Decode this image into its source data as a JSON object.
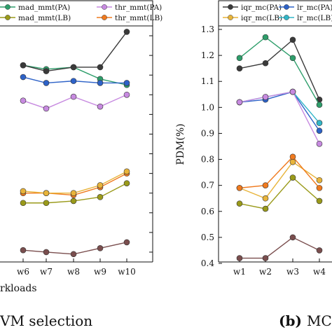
{
  "chart_data": [
    {
      "type": "line",
      "categories": [
        "w6",
        "w7",
        "w8",
        "w9",
        "w10"
      ],
      "xlabel": "rkloads",
      "caption": "VM selection",
      "series": [
        {
          "name": "mad_mmt(PA)",
          "color": "#2e9e6b",
          "marker": "circle",
          "values": [
            1.2,
            1.18,
            1.19,
            1.13,
            1.1
          ]
        },
        {
          "name": "thr_mmt(PA)",
          "color": "#c78ae0",
          "marker": "circle",
          "values": [
            1.02,
            0.98,
            1.04,
            0.99,
            1.05
          ]
        },
        {
          "name": "mad_mmt(LB)",
          "color": "#9a9a1a",
          "marker": "circle",
          "values": [
            0.5,
            0.5,
            0.51,
            0.53,
            0.6
          ]
        },
        {
          "name": "thr_mmt(LB)",
          "color": "#f07a1e",
          "marker": "circle",
          "values": [
            0.55,
            0.55,
            0.54,
            0.58,
            0.65
          ]
        },
        {
          "name": "",
          "color": "#3a3a3a",
          "marker": "circle",
          "values": [
            1.2,
            1.17,
            1.19,
            1.19,
            1.37
          ]
        },
        {
          "name": "",
          "color": "#2d62c8",
          "marker": "circle",
          "values": [
            1.14,
            1.11,
            1.12,
            1.11,
            1.11
          ]
        },
        {
          "name": "",
          "color": "#e8b43a",
          "marker": "circle",
          "values": [
            0.56,
            0.55,
            0.55,
            0.59,
            0.66
          ]
        },
        {
          "name": "",
          "color": "#7a4e4e",
          "marker": "circle",
          "values": [
            0.26,
            0.25,
            0.24,
            0.27,
            0.3
          ]
        }
      ],
      "legend_labels": [
        "mad_mmt(PA)",
        "thr_mmt(PA)",
        "mad_mmt(LB)",
        "thr_mmt(LB)"
      ]
    },
    {
      "type": "line",
      "categories": [
        "w1",
        "w2",
        "w3",
        "w4"
      ],
      "ylabel": "PDM(%)",
      "caption_prefix": "(b)",
      "caption": "MC",
      "ylim": [
        0.4,
        1.3
      ],
      "yticks": [
        "0.4",
        "0.5",
        "0.6",
        "0.7",
        "0.8",
        "0.9",
        "1.0",
        "1.1",
        "1.2",
        "1.3"
      ],
      "series": [
        {
          "name": "iqr_mc(PA)",
          "color": "#3a3a3a",
          "marker": "circle",
          "values": [
            1.15,
            1.17,
            1.26,
            1.03
          ]
        },
        {
          "name": "lr_mc(PA)",
          "color": "#2d62c8",
          "marker": "circle",
          "values": [
            1.02,
            1.03,
            1.06,
            0.91
          ]
        },
        {
          "name": "iqr_mc(LB)",
          "color": "#e8b43a",
          "marker": "circle",
          "values": [
            0.69,
            0.65,
            0.79,
            0.72
          ]
        },
        {
          "name": "lr_mc(LB)",
          "color": "#32b6c8",
          "marker": "circle",
          "values": [
            1.02,
            1.04,
            1.06,
            0.94
          ]
        },
        {
          "name": "",
          "color": "#2e9e6b",
          "marker": "circle",
          "values": [
            1.19,
            1.27,
            1.19,
            1.01
          ]
        },
        {
          "name": "",
          "color": "#c78ae0",
          "marker": "circle",
          "values": [
            1.02,
            1.04,
            1.06,
            0.86
          ]
        },
        {
          "name": "",
          "color": "#f07a1e",
          "marker": "circle",
          "values": [
            0.69,
            0.7,
            0.81,
            0.69
          ]
        },
        {
          "name": "",
          "color": "#9a9a1a",
          "marker": "circle",
          "values": [
            0.63,
            0.61,
            0.73,
            0.64
          ]
        },
        {
          "name": "",
          "color": "#7a4e4e",
          "marker": "circle",
          "values": [
            0.42,
            0.42,
            0.5,
            0.45
          ]
        }
      ],
      "legend_labels": [
        "iqr_mc(PA)",
        "lr_mc(PA)",
        "iqr_mc(LB)",
        "lr_mc(LB)"
      ]
    }
  ]
}
